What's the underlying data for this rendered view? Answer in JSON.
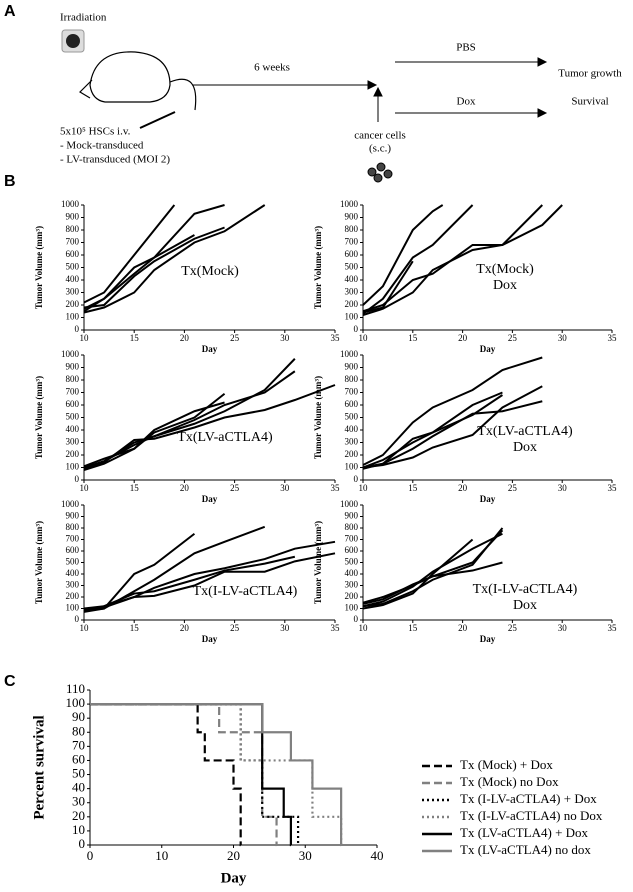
{
  "panel_labels": [
    "A",
    "B",
    "C"
  ],
  "diagram": {
    "irradiation": "Irradiation",
    "interval": "6 weeks",
    "arm_1": "PBS",
    "arm_2": "Dox",
    "readout_1": "Tumor growth",
    "readout_2": "Survival",
    "cancer_cells": "cancer cells",
    "route": "(s.c.)",
    "hsc": "5x10⁵ HSCs  i.v.",
    "group_1": "- Mock-transduced",
    "group_2": "- LV-transduced (MOI 2)"
  },
  "chart_data": [
    {
      "type": "line",
      "title": "Tx(Mock)",
      "x_label": "Day",
      "y_label": "Tumor Volume (mm³)",
      "xlim": [
        10,
        35
      ],
      "xticks": [
        10,
        15,
        20,
        25,
        30,
        35
      ],
      "ylim": [
        0,
        1000
      ],
      "yticks": [
        0,
        100,
        200,
        300,
        400,
        500,
        600,
        700,
        800,
        900,
        1000
      ],
      "series": [
        {
          "color": "#000000",
          "x": [
            10,
            12,
            15,
            17,
            19
          ],
          "values": [
            220,
            300,
            600,
            800,
            1000
          ]
        },
        {
          "color": "#000000",
          "x": [
            10,
            12,
            15,
            17,
            21,
            24
          ],
          "values": [
            150,
            250,
            500,
            580,
            930,
            1000
          ]
        },
        {
          "color": "#000000",
          "x": [
            10,
            12,
            15,
            17,
            21,
            24,
            28
          ],
          "values": [
            140,
            180,
            300,
            480,
            700,
            790,
            1000
          ]
        },
        {
          "color": "#000000",
          "x": [
            10,
            12,
            15,
            17,
            21,
            24
          ],
          "values": [
            180,
            200,
            430,
            550,
            730,
            820
          ]
        },
        {
          "color": "#000000",
          "x": [
            10,
            12,
            15,
            17,
            21
          ],
          "values": [
            170,
            250,
            450,
            580,
            760
          ]
        }
      ]
    },
    {
      "type": "line",
      "title": "Tx(Mock)",
      "subtitle": "Dox",
      "x_label": "Day",
      "y_label": "Tumor Volume (mm³)",
      "xlim": [
        10,
        35
      ],
      "xticks": [
        10,
        15,
        20,
        25,
        30,
        35
      ],
      "ylim": [
        0,
        1000
      ],
      "yticks": [
        0,
        100,
        200,
        300,
        400,
        500,
        600,
        700,
        800,
        900,
        1000
      ],
      "series": [
        {
          "color": "#000000",
          "x": [
            10,
            12,
            15,
            17,
            18
          ],
          "values": [
            200,
            350,
            800,
            950,
            1000
          ]
        },
        {
          "color": "#000000",
          "x": [
            10,
            12,
            15,
            17,
            21
          ],
          "values": [
            130,
            250,
            580,
            680,
            1000
          ]
        },
        {
          "color": "#000000",
          "x": [
            10,
            12,
            15,
            17,
            21,
            24,
            28
          ],
          "values": [
            120,
            170,
            300,
            480,
            640,
            680,
            1000
          ]
        },
        {
          "color": "#000000",
          "x": [
            10,
            12,
            15,
            17,
            21,
            24,
            28,
            30
          ],
          "values": [
            150,
            200,
            400,
            450,
            680,
            680,
            840,
            1000
          ]
        },
        {
          "color": "#000000",
          "x": [
            10,
            12,
            15
          ],
          "values": [
            140,
            180,
            550
          ]
        }
      ]
    },
    {
      "type": "line",
      "title": "Tx(LV-aCTLA4)",
      "x_label": "Day",
      "y_label": "Tumor Volume (mm³)",
      "xlim": [
        10,
        35
      ],
      "xticks": [
        10,
        15,
        20,
        25,
        30,
        35
      ],
      "ylim": [
        0,
        1000
      ],
      "yticks": [
        0,
        100,
        200,
        300,
        400,
        500,
        600,
        700,
        800,
        900,
        1000
      ],
      "series": [
        {
          "color": "#000000",
          "x": [
            10,
            12,
            15,
            17,
            21,
            24
          ],
          "values": [
            80,
            130,
            250,
            380,
            500,
            690
          ]
        },
        {
          "color": "#000000",
          "x": [
            10,
            12,
            15,
            17,
            21,
            24,
            28,
            31
          ],
          "values": [
            100,
            150,
            300,
            350,
            450,
            550,
            720,
            970
          ]
        },
        {
          "color": "#000000",
          "x": [
            10,
            12,
            15,
            17,
            21,
            24,
            28,
            31
          ],
          "values": [
            90,
            150,
            280,
            350,
            480,
            600,
            700,
            870
          ]
        },
        {
          "color": "#000000",
          "x": [
            10,
            12,
            15,
            17,
            21,
            24,
            28,
            31,
            35
          ],
          "values": [
            100,
            140,
            320,
            330,
            420,
            500,
            560,
            640,
            760
          ]
        },
        {
          "color": "#000000",
          "x": [
            10,
            12,
            15,
            17,
            21,
            24
          ],
          "values": [
            110,
            170,
            250,
            400,
            550,
            620
          ]
        }
      ]
    },
    {
      "type": "line",
      "title": "Tx(LV-aCTLA4)",
      "subtitle": "Dox",
      "x_label": "Day",
      "y_label": "Tumor Volume (mm³)",
      "xlim": [
        10,
        35
      ],
      "xticks": [
        10,
        15,
        20,
        25,
        30,
        35
      ],
      "ylim": [
        0,
        1000
      ],
      "yticks": [
        0,
        100,
        200,
        300,
        400,
        500,
        600,
        700,
        800,
        900,
        1000
      ],
      "series": [
        {
          "color": "#000000",
          "x": [
            10,
            12,
            15,
            17,
            21,
            24,
            28
          ],
          "values": [
            120,
            200,
            460,
            580,
            720,
            880,
            980
          ]
        },
        {
          "color": "#000000",
          "x": [
            10,
            12,
            15,
            17,
            21,
            24
          ],
          "values": [
            100,
            130,
            330,
            380,
            600,
            700
          ]
        },
        {
          "color": "#000000",
          "x": [
            10,
            12,
            15,
            17,
            21,
            24,
            28
          ],
          "values": [
            90,
            130,
            250,
            350,
            530,
            550,
            630
          ]
        },
        {
          "color": "#000000",
          "x": [
            10,
            12,
            15,
            17,
            21,
            24,
            28
          ],
          "values": [
            100,
            120,
            180,
            260,
            360,
            580,
            750
          ]
        },
        {
          "color": "#000000",
          "x": [
            10,
            12,
            15,
            17,
            21,
            24
          ],
          "values": [
            100,
            160,
            300,
            380,
            520,
            680
          ]
        }
      ]
    },
    {
      "type": "line",
      "title": "Tx(I-LV-aCTLA4)",
      "x_label": "Day",
      "y_label": "Tumor Volume (mm³)",
      "xlim": [
        10,
        35
      ],
      "xticks": [
        10,
        15,
        20,
        25,
        30,
        35
      ],
      "ylim": [
        0,
        1000
      ],
      "yticks": [
        0,
        100,
        200,
        300,
        400,
        500,
        600,
        700,
        800,
        900,
        1000
      ],
      "series": [
        {
          "color": "#000000",
          "x": [
            10,
            12,
            15,
            17,
            21
          ],
          "values": [
            80,
            100,
            400,
            480,
            750
          ]
        },
        {
          "color": "#000000",
          "x": [
            10,
            12,
            15,
            17,
            21,
            24,
            28
          ],
          "values": [
            70,
            100,
            250,
            350,
            580,
            680,
            810
          ]
        },
        {
          "color": "#000000",
          "x": [
            10,
            12,
            15,
            17,
            21,
            24,
            28,
            31,
            35
          ],
          "values": [
            80,
            120,
            200,
            280,
            400,
            450,
            530,
            620,
            680
          ]
        },
        {
          "color": "#000000",
          "x": [
            10,
            12,
            15,
            17,
            21,
            24,
            28,
            31,
            35
          ],
          "values": [
            90,
            110,
            200,
            210,
            300,
            420,
            420,
            510,
            580
          ]
        },
        {
          "color": "#000000",
          "x": [
            10,
            12,
            15,
            17,
            21,
            24,
            28,
            31
          ],
          "values": [
            100,
            120,
            230,
            250,
            350,
            430,
            490,
            550
          ]
        }
      ]
    },
    {
      "type": "line",
      "title": "Tx(I-LV-aCTLA4)",
      "subtitle": "Dox",
      "x_label": "Day",
      "y_label": "Tumor Volume (mm³)",
      "xlim": [
        10,
        35
      ],
      "xticks": [
        10,
        15,
        20,
        25,
        30,
        35
      ],
      "ylim": [
        0,
        1000
      ],
      "yticks": [
        0,
        100,
        200,
        300,
        400,
        500,
        600,
        700,
        800,
        900,
        1000
      ],
      "series": [
        {
          "color": "#000000",
          "x": [
            10,
            12,
            15,
            17,
            21,
            24
          ],
          "values": [
            150,
            200,
            300,
            380,
            500,
            780
          ]
        },
        {
          "color": "#000000",
          "x": [
            10,
            12,
            15,
            17,
            21,
            24
          ],
          "values": [
            120,
            140,
            250,
            350,
            480,
            800
          ]
        },
        {
          "color": "#000000",
          "x": [
            10,
            12,
            15,
            17,
            21
          ],
          "values": [
            100,
            130,
            230,
            400,
            700
          ]
        },
        {
          "color": "#000000",
          "x": [
            10,
            12,
            15,
            17,
            21,
            24
          ],
          "values": [
            140,
            180,
            310,
            380,
            430,
            500
          ]
        },
        {
          "color": "#000000",
          "x": [
            10,
            12,
            15,
            17,
            21,
            24
          ],
          "values": [
            120,
            160,
            290,
            420,
            620,
            750
          ]
        }
      ]
    },
    {
      "type": "step",
      "x_label": "Day",
      "y_label": "Percent survival",
      "xlim": [
        0,
        40
      ],
      "xticks": [
        0,
        10,
        20,
        30,
        40
      ],
      "ylim": [
        0,
        110
      ],
      "yticks": [
        0,
        10,
        20,
        30,
        40,
        50,
        60,
        70,
        80,
        90,
        100,
        110
      ],
      "series": [
        {
          "name": "Tx (Mock) + Dox",
          "color": "#000000",
          "dash": "dashed",
          "x": [
            0,
            15,
            16,
            20,
            21
          ],
          "values": [
            100,
            80,
            60,
            40,
            0
          ]
        },
        {
          "name": "Tx (Mock) no Dox",
          "color": "#808080",
          "dash": "dashed",
          "x": [
            0,
            18,
            24,
            26
          ],
          "values": [
            100,
            80,
            20,
            0
          ]
        },
        {
          "name": "Tx (I-LV-aCTLA4) + Dox",
          "color": "#000000",
          "dash": "dotted",
          "x": [
            0,
            21,
            24,
            29
          ],
          "values": [
            100,
            60,
            20,
            0
          ]
        },
        {
          "name": "Tx (I-LV-aCTLA4) no Dox",
          "color": "#808080",
          "dash": "dotted",
          "x": [
            0,
            21,
            31,
            35
          ],
          "values": [
            100,
            60,
            20,
            0
          ]
        },
        {
          "name": "Tx (LV-aCTLA4) + Dox",
          "color": "#000000",
          "dash": "solid",
          "x": [
            0,
            24,
            27,
            28
          ],
          "values": [
            100,
            40,
            20,
            0
          ]
        },
        {
          "name": "Tx (LV-aCTLA4) no dox",
          "color": "#808080",
          "dash": "solid",
          "x": [
            0,
            24,
            28,
            31,
            35
          ],
          "values": [
            100,
            80,
            60,
            40,
            0
          ]
        }
      ]
    }
  ]
}
